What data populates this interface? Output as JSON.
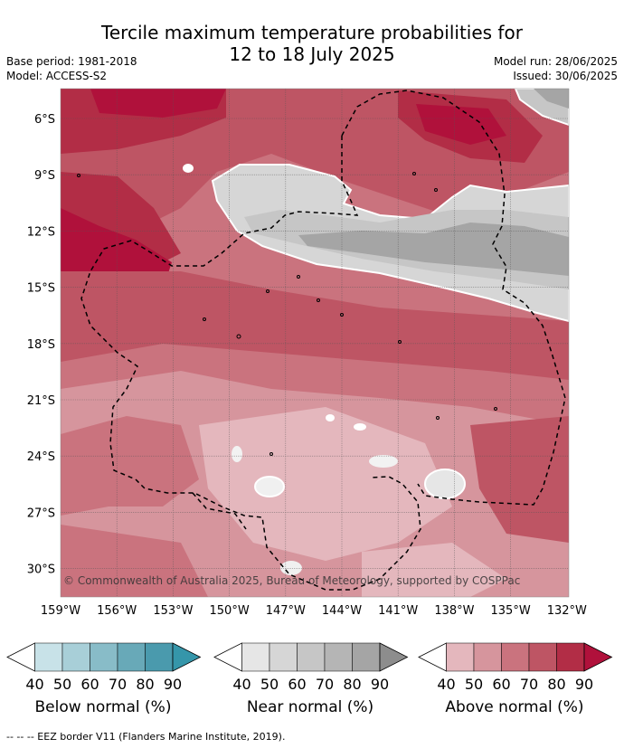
{
  "title_line1": "Tercile maximum temperature probabilities for",
  "title_line2": "12 to 18 July 2025",
  "base_period": "Base period: 1981-2018",
  "model": "Model: ACCESS-S2",
  "model_run": "Model run: 28/06/2025",
  "issued": "Issued: 30/06/2025",
  "lat_labels": [
    "6°S",
    "9°S",
    "12°S",
    "15°S",
    "18°S",
    "21°S",
    "24°S",
    "27°S",
    "30°S"
  ],
  "lon_labels": [
    "159°W",
    "156°W",
    "153°W",
    "150°W",
    "147°W",
    "144°W",
    "141°W",
    "138°W",
    "135°W",
    "132°W"
  ],
  "copyright": "© Commonwealth of Australia 2025, Bureau of Meteorology, supported by COSPPac",
  "legends": [
    {
      "name": "Below normal (%)",
      "ticks": [
        "40",
        "50",
        "60",
        "70",
        "80",
        "90"
      ],
      "colors": [
        "#ffffff",
        "#c8e2e8",
        "#a8cfd8",
        "#88bcc8",
        "#68a9b8",
        "#4a9aad",
        "#3596aa"
      ]
    },
    {
      "name": "Near normal (%)",
      "ticks": [
        "40",
        "50",
        "60",
        "70",
        "80",
        "90"
      ],
      "colors": [
        "#ffffff",
        "#e6e6e6",
        "#d6d6d6",
        "#c6c6c6",
        "#b5b5b5",
        "#a5a5a5",
        "#8d8d8d"
      ]
    },
    {
      "name": "Above normal (%)",
      "ticks": [
        "40",
        "50",
        "60",
        "70",
        "80",
        "90"
      ],
      "colors": [
        "#ffffff",
        "#e4b7bd",
        "#d6959d",
        "#ca737e",
        "#be5564",
        "#b22d46",
        "#b0113b"
      ]
    }
  ],
  "footnote": "-- -- -- EEZ border V11 (Flanders Marine Institute, 2019)."
}
